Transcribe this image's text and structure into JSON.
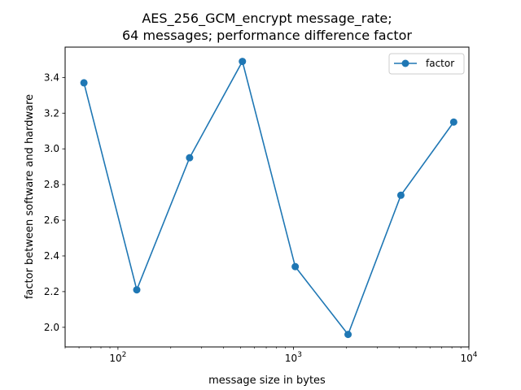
{
  "chart_data": {
    "type": "line",
    "title_lines": [
      "AES_256_GCM_encrypt message_rate;",
      "64 messages; performance difference factor"
    ],
    "xlabel": "message size in bytes",
    "ylabel": "factor between software and hardware",
    "x_scale": "log",
    "xlim": [
      50,
      10000
    ],
    "ylim": [
      1.89,
      3.57
    ],
    "x_ticks": [
      {
        "value": 100,
        "base": "10",
        "exp": "2"
      },
      {
        "value": 1000,
        "base": "10",
        "exp": "3"
      },
      {
        "value": 10000,
        "base": "10",
        "exp": "4"
      }
    ],
    "y_ticks": [
      2.0,
      2.2,
      2.4,
      2.6,
      2.8,
      3.0,
      3.2,
      3.4
    ],
    "y_tick_labels": [
      "2.0",
      "2.2",
      "2.4",
      "2.6",
      "2.8",
      "3.0",
      "3.2",
      "3.4"
    ],
    "grid": false,
    "legend": "top-right",
    "series": [
      {
        "name": "factor",
        "color": "#1f77b4",
        "marker": "circle",
        "x": [
          64,
          128,
          256,
          512,
          1024,
          2048,
          4096,
          8192
        ],
        "y": [
          3.37,
          2.21,
          2.95,
          3.49,
          2.34,
          1.96,
          2.74,
          3.15
        ]
      }
    ]
  }
}
